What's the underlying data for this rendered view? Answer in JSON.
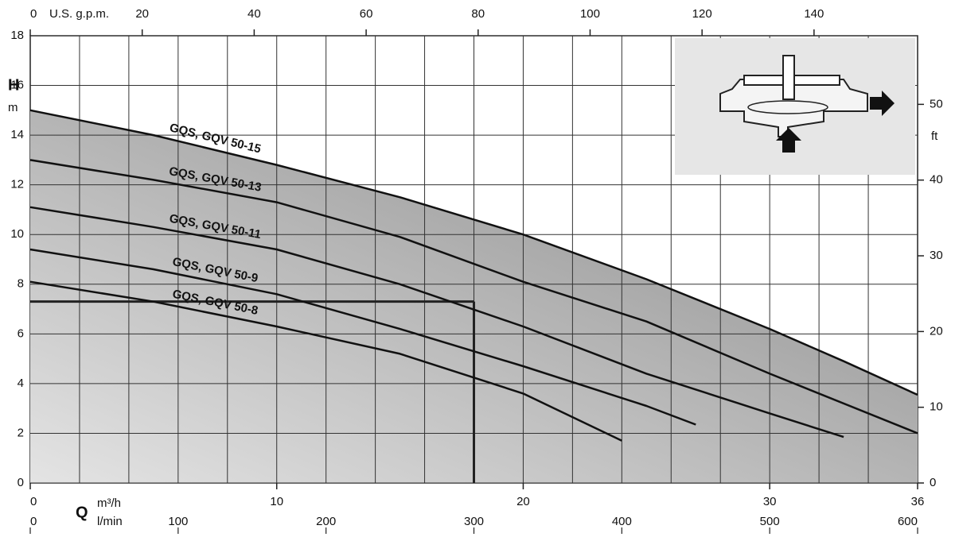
{
  "chart_data": {
    "type": "line",
    "xlabel": "Q",
    "xunit": "m³/h",
    "xlim": [
      0,
      36
    ],
    "xticks": [
      0,
      10,
      20,
      30,
      36
    ],
    "x2unit": "l/min",
    "x2lim": [
      0,
      600
    ],
    "x2ticks": [
      0,
      100,
      200,
      300,
      400,
      500,
      600
    ],
    "x3unit": "U.S. g.p.m.",
    "x3lim": [
      0,
      158.5
    ],
    "x3ticks": [
      0,
      20,
      40,
      60,
      80,
      100,
      120,
      140
    ],
    "ylabel": "H",
    "yunit": "m",
    "ylim": [
      0,
      18
    ],
    "yticks": [
      0,
      2,
      4,
      6,
      8,
      10,
      12,
      14,
      16,
      18
    ],
    "y2unit": "ft",
    "y2lim": [
      0,
      59.06
    ],
    "y2ticks": [
      0,
      10,
      20,
      30,
      40,
      50
    ],
    "grid": true,
    "x_grid": [
      2,
      4,
      6,
      8,
      10,
      12,
      14,
      16,
      18,
      20,
      22,
      24,
      26,
      28,
      30,
      32,
      34
    ],
    "area_color": "#8c8c8c",
    "operating_point": {
      "x": 18,
      "y": 7.3
    },
    "series": [
      {
        "name": "GQS, GQV 50-15",
        "color": "#111111",
        "x": [
          0,
          5,
          10,
          15,
          20,
          25,
          30,
          33,
          36
        ],
        "values": [
          15.0,
          14.0,
          12.8,
          11.5,
          10.0,
          8.2,
          6.2,
          4.9,
          3.55
        ]
      },
      {
        "name": "GQS, GQV 50-13",
        "color": "#111111",
        "x": [
          0,
          5,
          10,
          15,
          20,
          25,
          30,
          36
        ],
        "values": [
          13.0,
          12.2,
          11.3,
          9.9,
          8.1,
          6.5,
          4.4,
          2.0
        ]
      },
      {
        "name": "GQS, GQV 50-11",
        "color": "#111111",
        "x": [
          0,
          5,
          10,
          15,
          20,
          25,
          30,
          33
        ],
        "values": [
          11.1,
          10.3,
          9.4,
          8.0,
          6.3,
          4.4,
          2.8,
          1.85
        ]
      },
      {
        "name": "GQS, GQV 50-9",
        "color": "#111111",
        "x": [
          0,
          5,
          10,
          15,
          20,
          25,
          27
        ],
        "values": [
          9.4,
          8.6,
          7.6,
          6.2,
          4.7,
          3.1,
          2.35
        ]
      },
      {
        "name": "GQS, GQV 50-8",
        "color": "#111111",
        "x": [
          0,
          5,
          10,
          15,
          20,
          24
        ],
        "values": [
          8.1,
          7.3,
          6.3,
          5.2,
          3.6,
          1.7
        ]
      }
    ]
  }
}
